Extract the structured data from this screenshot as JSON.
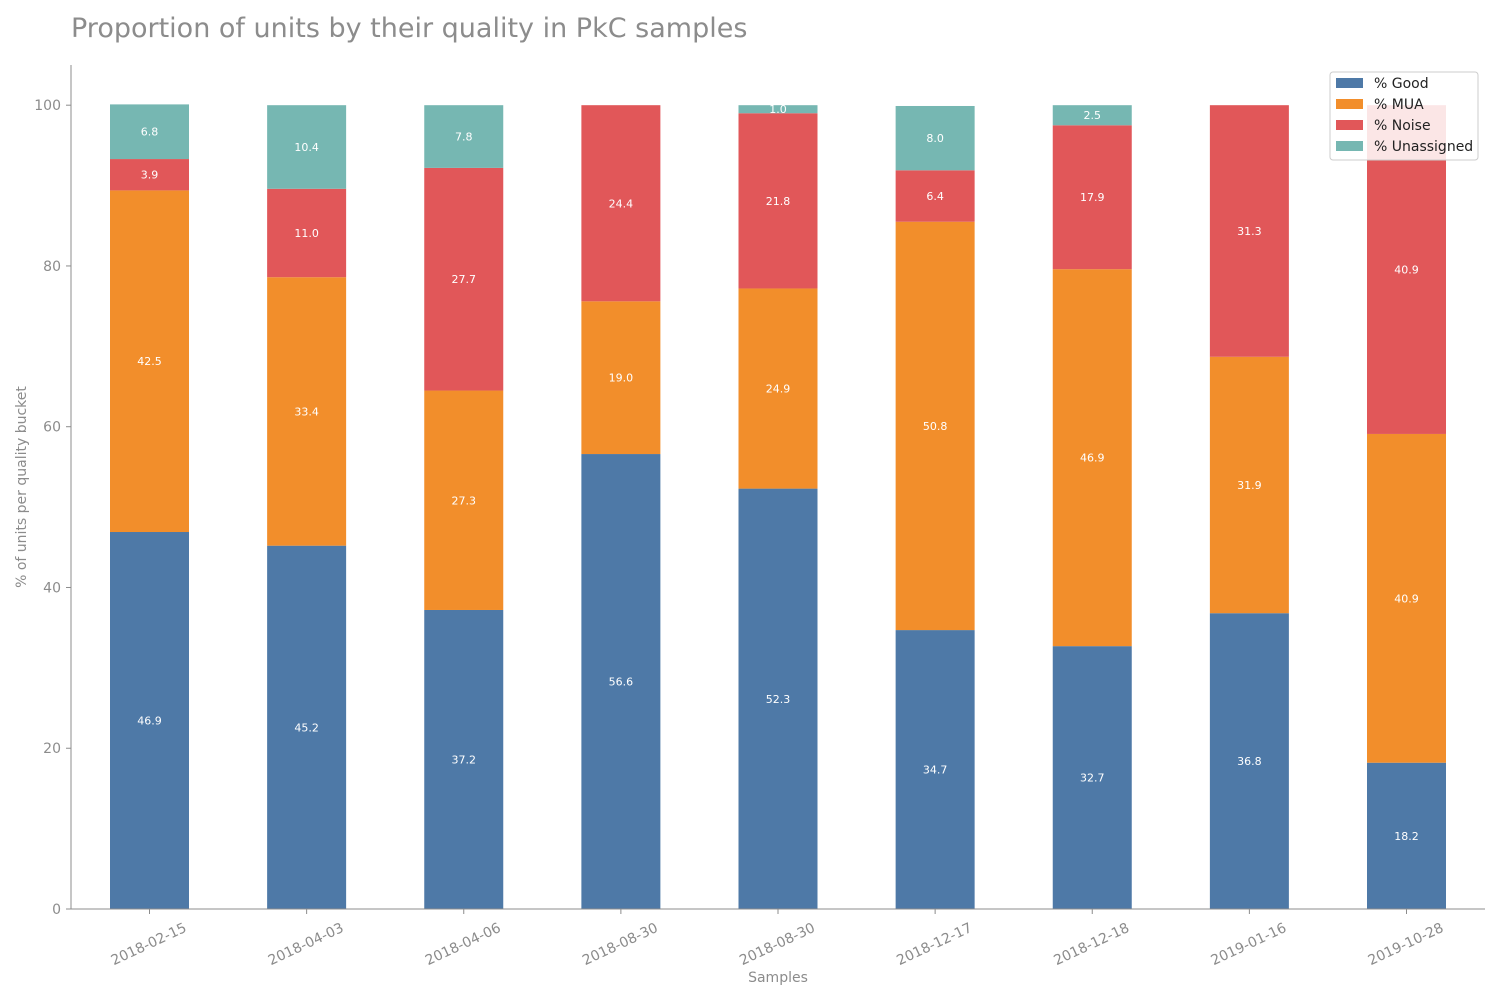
{
  "chart_data": {
    "type": "bar",
    "stacked": true,
    "title": "Proportion of units by their quality in PkC samples",
    "xlabel": "Samples",
    "ylabel": "% of units per quality bucket",
    "ylim": [
      0,
      105
    ],
    "yticks": [
      0,
      20,
      40,
      60,
      80,
      100
    ],
    "grid": false,
    "legend_position": "top-right",
    "categories": [
      "2018-02-15",
      "2018-04-03",
      "2018-04-06",
      "2018-08-30",
      "2018-08-30",
      "2018-12-17",
      "2018-12-18",
      "2019-01-16",
      "2019-10-28"
    ],
    "series": [
      {
        "name": "% Good",
        "color": "#4e79a7",
        "values": [
          46.9,
          45.2,
          37.2,
          56.6,
          52.3,
          34.7,
          32.7,
          36.8,
          18.2
        ]
      },
      {
        "name": "% MUA",
        "color": "#f28e2b",
        "values": [
          42.5,
          33.4,
          27.3,
          19.0,
          24.9,
          50.8,
          46.9,
          31.9,
          40.9
        ]
      },
      {
        "name": "% Noise",
        "color": "#e15759",
        "values": [
          3.9,
          11.0,
          27.7,
          24.4,
          21.8,
          6.4,
          17.9,
          31.3,
          40.9
        ]
      },
      {
        "name": "% Unassigned",
        "color": "#76b7b2",
        "values": [
          6.8,
          10.4,
          7.8,
          0,
          1.0,
          8.0,
          2.5,
          0,
          0
        ]
      }
    ]
  }
}
